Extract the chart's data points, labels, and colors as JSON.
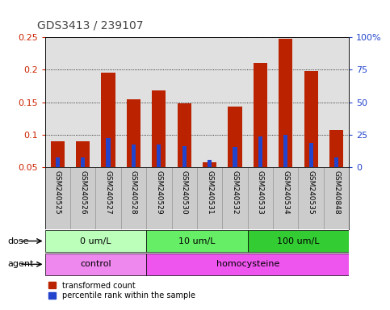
{
  "title": "GDS3413 / 239107",
  "samples": [
    "GSM240525",
    "GSM240526",
    "GSM240527",
    "GSM240528",
    "GSM240529",
    "GSM240530",
    "GSM240531",
    "GSM240532",
    "GSM240533",
    "GSM240534",
    "GSM240535",
    "GSM240848"
  ],
  "red_values": [
    0.09,
    0.09,
    0.195,
    0.155,
    0.168,
    0.149,
    0.058,
    0.144,
    0.21,
    0.248,
    0.198,
    0.108
  ],
  "blue_values": [
    0.065,
    0.065,
    0.095,
    0.085,
    0.085,
    0.083,
    0.062,
    0.082,
    0.098,
    0.1,
    0.088,
    0.065
  ],
  "ylim_left": [
    0.05,
    0.25
  ],
  "ylim_right": [
    0,
    100
  ],
  "yticks_left": [
    0.05,
    0.1,
    0.15,
    0.2,
    0.25
  ],
  "yticks_right": [
    0,
    25,
    50,
    75,
    100
  ],
  "ytick_labels_right": [
    "0",
    "25",
    "50",
    "75",
    "100%"
  ],
  "dose_groups": [
    {
      "label": "0 um/L",
      "start": 0,
      "end": 4,
      "color": "#bbffbb"
    },
    {
      "label": "10 um/L",
      "start": 4,
      "end": 8,
      "color": "#66ee66"
    },
    {
      "label": "100 um/L",
      "start": 8,
      "end": 12,
      "color": "#33cc33"
    }
  ],
  "agent_groups": [
    {
      "label": "control",
      "start": 0,
      "end": 4,
      "color": "#ee88ee"
    },
    {
      "label": "homocysteine",
      "start": 4,
      "end": 12,
      "color": "#ee55ee"
    }
  ],
  "dose_row_label": "dose",
  "agent_row_label": "agent",
  "legend_red": "transformed count",
  "legend_blue": "percentile rank within the sample",
  "bar_width": 0.55,
  "red_color": "#bb2200",
  "blue_color": "#2244cc",
  "bg_plot": "#e0e0e0",
  "bg_sample": "#cccccc",
  "title_color": "#444444",
  "left_tick_color": "#cc2200",
  "right_tick_color": "#2244cc"
}
